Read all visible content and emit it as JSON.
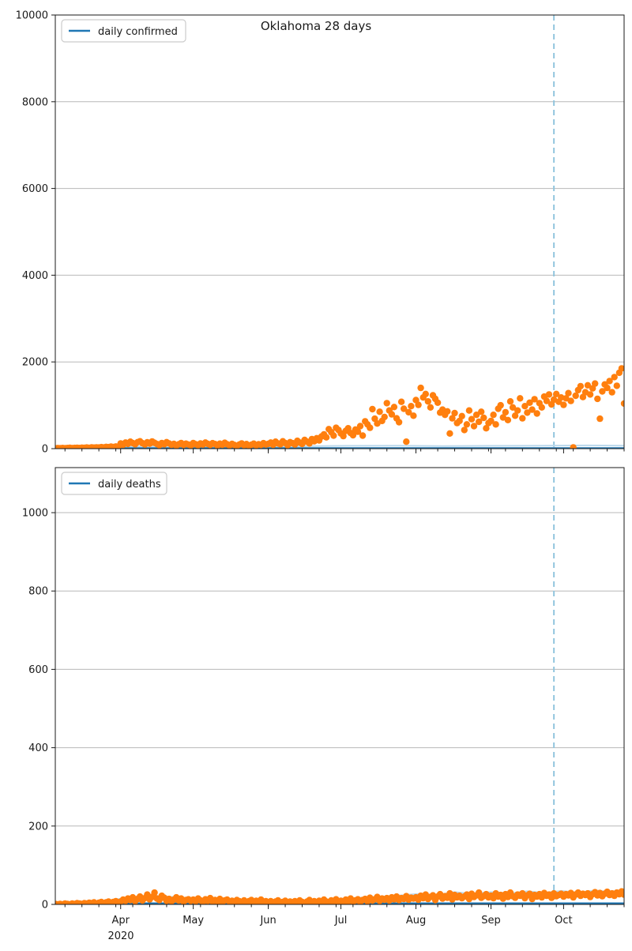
{
  "figure": {
    "title": "Oklahoma 28 days",
    "year_label": "2020"
  },
  "colors": {
    "scatter": "#ff7f0e",
    "model_line": "#1f77b4",
    "light_line": "#bcd9ec",
    "vline": "#92c5de",
    "grid": "#b8b8b8",
    "frame": "#1a1a1a"
  },
  "x_axis": {
    "total_days": 235,
    "year_label": "2020",
    "month_ticks": [
      {
        "day": 27,
        "label": "Apr"
      },
      {
        "day": 57,
        "label": "May"
      },
      {
        "day": 88,
        "label": "Jun"
      },
      {
        "day": 118,
        "label": "Jul"
      },
      {
        "day": 149,
        "label": "Aug"
      },
      {
        "day": 180,
        "label": "Sep"
      },
      {
        "day": 210,
        "label": "Oct"
      }
    ],
    "minor_tick_start_day": 4,
    "minor_tick_interval_days": 7
  },
  "chart_data": [
    {
      "type": "scatter",
      "title": "Oklahoma 28 days",
      "legend": "daily confirmed",
      "ylabel": "",
      "ylim": [
        0,
        10000
      ],
      "yticks": [
        0,
        2000,
        4000,
        6000,
        8000,
        10000
      ],
      "grid": "horizontal",
      "legend_position": "upper-left",
      "vline_day": 206,
      "scatter_values": [
        8,
        12,
        10,
        15,
        9,
        14,
        18,
        12,
        16,
        20,
        15,
        22,
        18,
        25,
        20,
        28,
        24,
        30,
        26,
        35,
        30,
        40,
        35,
        45,
        38,
        50,
        42,
        120,
        90,
        140,
        110,
        160,
        130,
        100,
        150,
        170,
        125,
        95,
        145,
        115,
        165,
        135,
        105,
        80,
        130,
        100,
        150,
        120,
        90,
        110,
        70,
        100,
        130,
        85,
        115,
        95,
        75,
        130,
        100,
        80,
        120,
        95,
        140,
        110,
        85,
        125,
        105,
        70,
        115,
        90,
        135,
        100,
        75,
        110,
        85,
        60,
        95,
        120,
        80,
        105,
        65,
        90,
        115,
        75,
        100,
        85,
        125,
        95,
        110,
        140,
        90,
        160,
        120,
        100,
        170,
        130,
        80,
        150,
        125,
        95,
        180,
        140,
        110,
        200,
        160,
        120,
        220,
        170,
        240,
        190,
        280,
        330,
        260,
        450,
        380,
        300,
        480,
        430,
        350,
        290,
        410,
        470,
        360,
        310,
        440,
        390,
        520,
        300,
        630,
        560,
        480,
        910,
        690,
        580,
        850,
        640,
        730,
        1050,
        880,
        790,
        960,
        700,
        610,
        1080,
        920,
        160,
        840,
        980,
        760,
        1120,
        1010,
        1400,
        1180,
        1260,
        1090,
        950,
        1230,
        1150,
        1060,
        830,
        900,
        780,
        860,
        350,
        700,
        820,
        590,
        640,
        750,
        430,
        560,
        880,
        680,
        520,
        780,
        620,
        850,
        710,
        470,
        590,
        640,
        780,
        560,
        920,
        1000,
        720,
        840,
        660,
        1090,
        950,
        760,
        880,
        1160,
        700,
        980,
        830,
        1060,
        900,
        1140,
        810,
        1050,
        950,
        1200,
        1100,
        1250,
        1020,
        1130,
        1260,
        1080,
        1180,
        1010,
        1160,
        1280,
        1100,
        30,
        1220,
        1350,
        1440,
        1190,
        1300,
        1460,
        1250,
        1390,
        1500,
        1150,
        690,
        1320,
        1480,
        1400,
        1560,
        1300,
        1650,
        1450,
        1750,
        1850,
        1040
      ],
      "lines": [
        {
          "name": "light-prediction-line",
          "color_key": "light_line",
          "width": 2,
          "points": [
            [
              0,
              40
            ],
            [
              20,
              45
            ],
            [
              40,
              60
            ],
            [
              60,
              50
            ],
            [
              80,
              45
            ],
            [
              100,
              55
            ],
            [
              120,
              65
            ],
            [
              140,
              70
            ],
            [
              160,
              60
            ],
            [
              180,
              65
            ],
            [
              200,
              70
            ],
            [
              220,
              75
            ],
            [
              235,
              70
            ]
          ]
        },
        {
          "name": "model-line",
          "color_key": "model_line",
          "width": 2,
          "points": [
            [
              0,
              12
            ],
            [
              235,
              12
            ]
          ]
        }
      ]
    },
    {
      "type": "scatter",
      "title": "",
      "legend": "daily deaths",
      "ylabel": "",
      "ylim": [
        0,
        1115
      ],
      "yticks": [
        0,
        200,
        400,
        600,
        800,
        1000
      ],
      "grid": "horizontal",
      "legend_position": "upper-left",
      "vline_day": 206,
      "scatter_values": [
        1,
        0,
        1,
        0,
        2,
        1,
        0,
        2,
        1,
        3,
        2,
        1,
        3,
        2,
        4,
        3,
        5,
        2,
        4,
        6,
        3,
        5,
        7,
        4,
        6,
        8,
        5,
        7,
        12,
        9,
        15,
        11,
        18,
        8,
        14,
        20,
        10,
        16,
        25,
        13,
        19,
        30,
        15,
        11,
        22,
        17,
        9,
        14,
        8,
        12,
        18,
        10,
        15,
        7,
        11,
        13,
        9,
        12,
        8,
        15,
        10,
        6,
        13,
        9,
        16,
        7,
        11,
        8,
        14,
        6,
        10,
        12,
        7,
        9,
        5,
        11,
        8,
        6,
        10,
        4,
        8,
        11,
        5,
        9,
        7,
        12,
        6,
        8,
        5,
        8,
        3,
        7,
        10,
        4,
        6,
        9,
        2,
        7,
        5,
        8,
        4,
        10,
        6,
        3,
        7,
        11,
        5,
        8,
        4,
        9,
        6,
        12,
        7,
        5,
        10,
        8,
        13,
        6,
        9,
        5,
        12,
        8,
        15,
        7,
        10,
        13,
        6,
        11,
        14,
        8,
        17,
        10,
        13,
        19,
        9,
        15,
        12,
        16,
        10,
        18,
        13,
        20,
        11,
        16,
        14,
        21,
        12,
        17,
        15,
        18,
        12,
        22,
        16,
        25,
        14,
        19,
        23,
        11,
        20,
        26,
        15,
        21,
        17,
        28,
        13,
        24,
        18,
        22,
        16,
        20,
        25,
        14,
        27,
        19,
        23,
        30,
        17,
        21,
        26,
        18,
        22,
        16,
        28,
        20,
        24,
        15,
        26,
        19,
        30,
        21,
        17,
        25,
        22,
        28,
        16,
        23,
        27,
        14,
        24,
        20,
        26,
        18,
        29,
        22,
        25,
        17,
        28,
        21,
        24,
        27,
        20,
        26,
        23,
        29,
        18,
        25,
        30,
        22,
        27,
        24,
        28,
        19,
        26,
        31,
        23,
        29,
        21,
        27,
        32,
        24,
        28,
        22,
        30,
        26,
        33,
        25
      ],
      "lines": [
        {
          "name": "light-prediction-line",
          "color_key": "light_line",
          "width": 2.5,
          "points": [
            [
              0,
              3
            ],
            [
              15,
              4
            ],
            [
              27,
              14
            ],
            [
              40,
              22
            ],
            [
              50,
              18
            ],
            [
              57,
              15
            ],
            [
              70,
              12
            ],
            [
              88,
              9
            ],
            [
              100,
              10
            ],
            [
              110,
              11
            ],
            [
              118,
              14
            ],
            [
              130,
              18
            ],
            [
              140,
              21
            ],
            [
              149,
              26
            ],
            [
              158,
              24
            ],
            [
              165,
              31
            ],
            [
              172,
              27
            ],
            [
              180,
              31
            ],
            [
              188,
              28
            ],
            [
              195,
              33
            ],
            [
              202,
              29
            ],
            [
              209,
              34
            ],
            [
              216,
              30
            ],
            [
              223,
              35
            ],
            [
              229,
              32
            ],
            [
              235,
              36
            ]
          ]
        },
        {
          "name": "model-line",
          "color_key": "model_line",
          "width": 2,
          "points": [
            [
              0,
              3
            ],
            [
              235,
              3
            ]
          ]
        }
      ]
    }
  ]
}
